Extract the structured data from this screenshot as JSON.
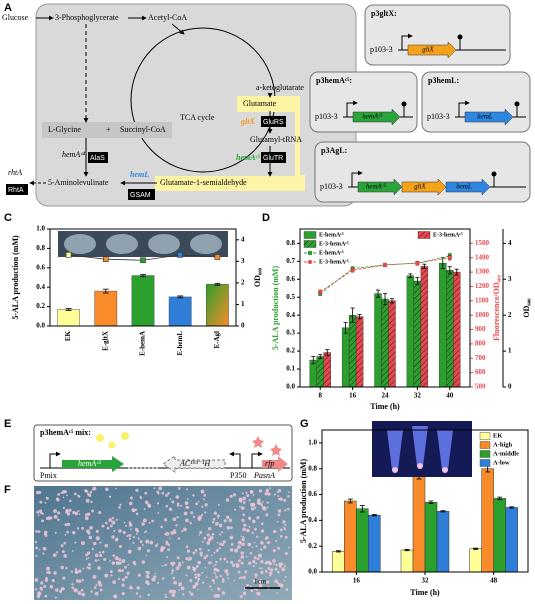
{
  "panel_labels": [
    "A",
    "B",
    "C",
    "D",
    "E",
    "F",
    "G"
  ],
  "pathway": {
    "glucose": "Glucose",
    "pga": "3-Phosphoglycerate",
    "acetyl_coa": "Acetyl-CoA",
    "tca": "TCA cycle",
    "akg": "a-ketoglutarate",
    "glutamate": "Glutamate",
    "gltx": "gltX",
    "glurs": "GluRS",
    "glutamyl_trna": "Glutamyl-tRNA",
    "hemac5": "hemAᶜ⁵",
    "glutr": "GluTR",
    "glycine": "L-Glycine",
    "plus": "+",
    "succinyl_coa": "Succinyl-CoA",
    "hemac4": "hemAᶜ⁴",
    "alas": "AlaS",
    "rhta_gene": "rhtA",
    "rhta_protein": "RhtA",
    "ala": "5-Aminolevulinate",
    "heml": "hemL",
    "gsam": "GSAM",
    "gsa": "Glutamate-1-semialdehyde"
  },
  "plasmids": [
    {
      "name": "p3gltX:",
      "promoter": "p103-3",
      "genes": [
        "gltX"
      ],
      "gene_colors": [
        "#f7a21b"
      ]
    },
    {
      "name": "p3hemAᶜ⁵:",
      "promoter": "p103-3",
      "genes": [
        "hemAᶜ⁵"
      ],
      "gene_colors": [
        "#2aa33a"
      ]
    },
    {
      "name": "p3hemL:",
      "promoter": "p103-3",
      "genes": [
        "hemL"
      ],
      "gene_colors": [
        "#2f86e0"
      ]
    },
    {
      "name": "p3AgL:",
      "promoter": "p103-3",
      "genes": [
        "hemAᶜ⁵",
        "gltX",
        "hemL"
      ],
      "gene_colors": [
        "#2aa33a",
        "#f7a21b",
        "#2f86e0"
      ]
    }
  ],
  "mix_construct": {
    "name": "p3hemAᶜ⁵ mix:",
    "promoter1": "Pmix",
    "gene1": "hemAᶜ⁵",
    "gene2": "AC¹⁹³⁻¹H",
    "promoter2": "P350",
    "promoter3": "PasnA",
    "gene3": "rfp"
  },
  "plate_photo": {
    "scale_bar": "1cm"
  },
  "chart_data": [
    {
      "type": "bar",
      "ylabel": "5-ALA production (mM)",
      "y2label": "OD₆₀₀",
      "categories": [
        "EK",
        "E-gltX",
        "E-hemA",
        "E-hemL",
        "E-Agl"
      ],
      "values": [
        0.17,
        0.36,
        0.52,
        0.3,
        0.43
      ],
      "errors": [
        0.01,
        0.02,
        0.01,
        0.01,
        0.01
      ],
      "colors": [
        "#ffff99",
        "#f98b2a",
        "#2ca02c",
        "#2f7fd8",
        [
          "#2ca02c",
          "#f98b2a"
        ]
      ],
      "line": {
        "axis": "y2",
        "color": "#333333",
        "values": [
          3.3,
          3.1,
          3.05,
          3.3,
          3.2
        ],
        "errors": [
          0.05,
          0.05,
          0.06,
          0.07,
          0.05
        ]
      },
      "ylim": [
        0,
        1.0
      ],
      "yticks": [
        {
          "value": 0,
          "label": "0.0"
        },
        {
          "value": 0.2,
          "label": "0.2"
        },
        {
          "value": 0.4,
          "label": "0.4"
        },
        {
          "value": 0.6,
          "label": "0.6"
        },
        {
          "value": 0.8,
          "label": "0.8"
        },
        {
          "value": 1,
          "label": "1.0"
        }
      ],
      "y2lim": [
        0,
        4.5
      ],
      "y2ticks": [
        0,
        1,
        2,
        3,
        4
      ]
    },
    {
      "type": "bar",
      "xlabel": "Time (h)",
      "ylabel": "5-ALA production (mM)",
      "y2label": "Fluorescence/OD₆₀₀",
      "y3label": "OD₆₀₀",
      "x": [
        8,
        16,
        24,
        32,
        40
      ],
      "xlim": [
        3,
        45
      ],
      "xticks": [
        8,
        16,
        24,
        32,
        40
      ],
      "ylim": [
        0,
        0.88
      ],
      "yticks": [
        {
          "value": 0,
          "label": "0.0"
        },
        {
          "value": 0.1,
          "label": "0.1"
        },
        {
          "value": 0.2,
          "label": "0.2"
        },
        {
          "value": 0.3,
          "label": "0.3"
        },
        {
          "value": 0.4,
          "label": "0.4"
        },
        {
          "value": 0.5,
          "label": "0.5"
        },
        {
          "value": 0.6,
          "label": "0.6"
        },
        {
          "value": 0.7,
          "label": "0.7"
        },
        {
          "value": 0.8,
          "label": "0.8"
        }
      ],
      "y2lim": [
        500,
        1600
      ],
      "y2ticks": [
        500,
        600,
        700,
        800,
        900,
        1000,
        1100,
        1200,
        1300,
        1400,
        1500
      ],
      "y3lim": [
        0,
        4.4
      ],
      "y3ticks": [
        0,
        1,
        2,
        3,
        4
      ],
      "series": [
        {
          "name": "E-hemAᶜ⁵",
          "color": "#2ca02c",
          "values": [
            0.15,
            0.33,
            0.52,
            0.62,
            0.69
          ],
          "errors": [
            0.02,
            0.03,
            0.02,
            0.01,
            0.03
          ]
        },
        {
          "name": "E-3-hemAᶜ⁵",
          "color": "#2ca02c",
          "hatch": true,
          "values": [
            0.17,
            0.4,
            0.49,
            0.59,
            0.65
          ],
          "errors": [
            0.01,
            0.04,
            0.03,
            0.02,
            0.02
          ]
        },
        {
          "name": "E-3-hemAᶜ⁵",
          "color": "#e8474c",
          "hatch": true,
          "axis": "y2",
          "values": [
            740,
            990,
            1100,
            1340,
            1300
          ],
          "errors": [
            20,
            15,
            15,
            15,
            20
          ]
        },
        {
          "name": "E-hemAᶜ⁵",
          "type": "line",
          "marker": "square",
          "color": "#2ca02c",
          "axis": "y3",
          "values": [
            2.6,
            3.3,
            3.4,
            3.45,
            3.65
          ],
          "errors": [
            0.05,
            0.05,
            0.04,
            0.05,
            0.06
          ]
        },
        {
          "name": "E-3-hemAᶜ⁵",
          "type": "line",
          "marker": "circle",
          "color": "#e8474c",
          "axis": "y3",
          "values": [
            2.65,
            3.25,
            3.4,
            3.45,
            3.6
          ],
          "errors": [
            0.05,
            0.05,
            0.04,
            0.05,
            0.06
          ]
        }
      ]
    },
    {
      "type": "bar",
      "xlabel": "Time (h)",
      "ylabel": "5-ALA production (mM)",
      "legend": "upper right",
      "categories": [
        "16",
        "32",
        "48"
      ],
      "ylim": [
        0,
        1.1
      ],
      "yticks": [
        {
          "value": 0,
          "label": "0.0"
        },
        {
          "value": 0.2,
          "label": "0.2"
        },
        {
          "value": 0.4,
          "label": "0.4"
        },
        {
          "value": 0.6,
          "label": "0.6"
        },
        {
          "value": 0.8,
          "label": "0.8"
        },
        {
          "value": 1,
          "label": "1.0"
        }
      ],
      "series": [
        {
          "name": "EK",
          "color": "#ffff99",
          "values": [
            0.16,
            0.17,
            0.18
          ],
          "errors": [
            0.005,
            0.005,
            0.005
          ]
        },
        {
          "name": "A-high",
          "color": "#f98b2a",
          "values": [
            0.55,
            0.74,
            0.8
          ],
          "errors": [
            0.015,
            0.02,
            0.025
          ]
        },
        {
          "name": "A-middle",
          "color": "#2ca02c",
          "values": [
            0.49,
            0.54,
            0.57
          ],
          "errors": [
            0.025,
            0.01,
            0.01
          ]
        },
        {
          "name": "A-low",
          "color": "#2f7fd8",
          "values": [
            0.44,
            0.47,
            0.5
          ],
          "errors": [
            0.005,
            0.005,
            0.005
          ]
        }
      ]
    }
  ]
}
